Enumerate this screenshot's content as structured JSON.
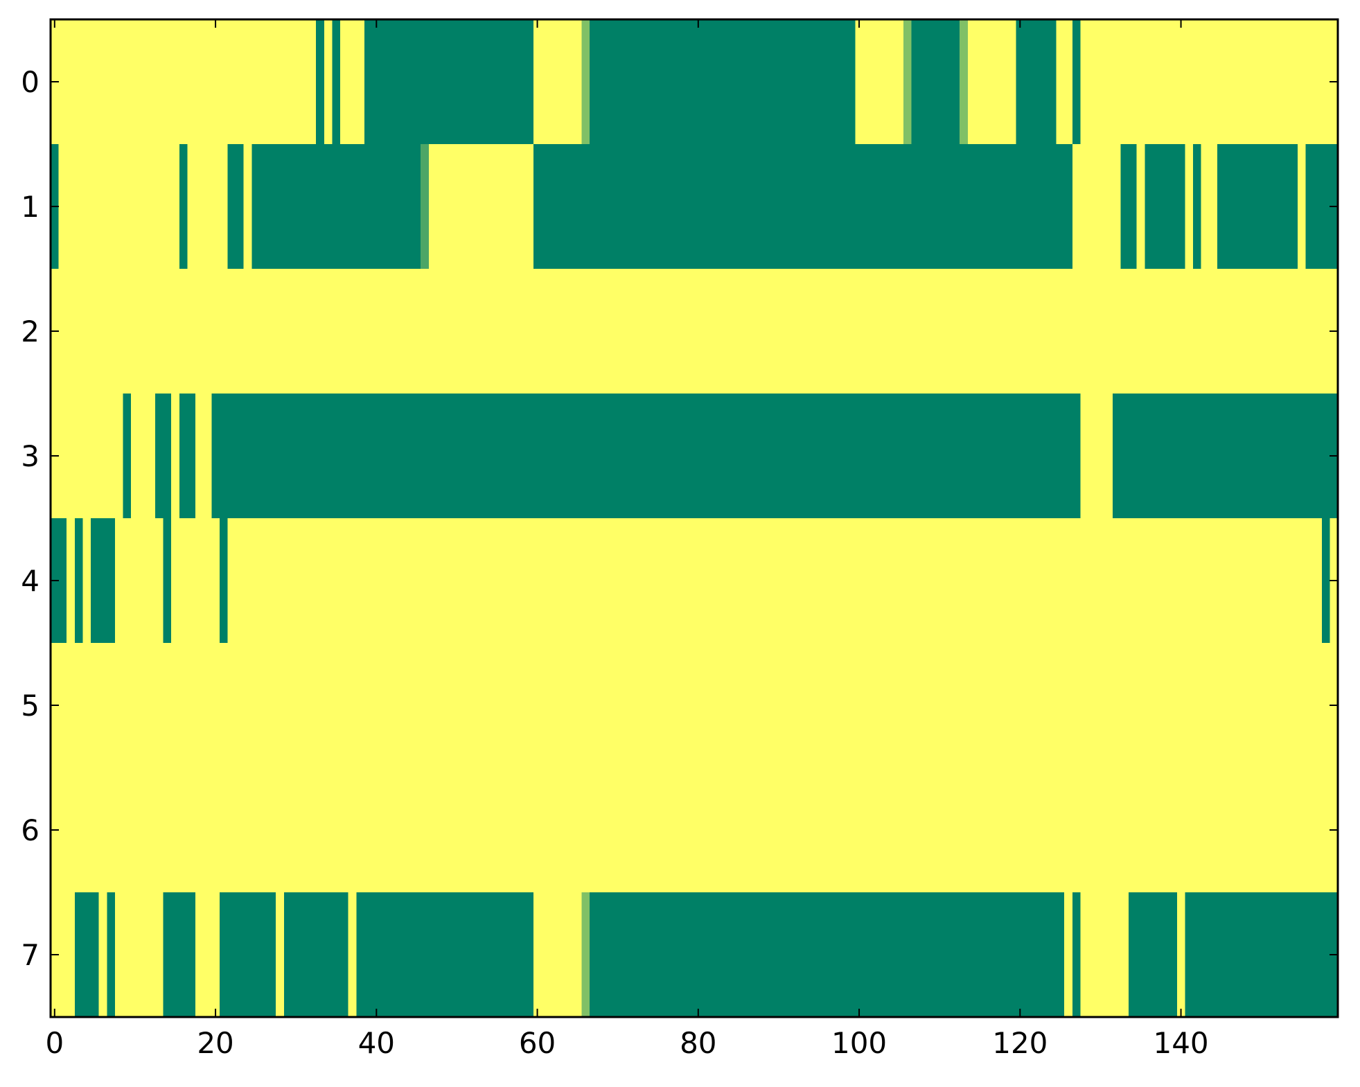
{
  "chart_data": {
    "type": "heatmap",
    "title": "",
    "xlabel": "",
    "ylabel": "",
    "n_cols": 160,
    "n_rows": 8,
    "xlim": [
      -0.5,
      159.5
    ],
    "ylim": [
      7.5,
      -0.5
    ],
    "grid": false,
    "legend": "none",
    "colormap": "summer_r",
    "x_ticks": [
      0,
      20,
      40,
      60,
      80,
      100,
      120,
      140
    ],
    "x_tick_labels": [
      "0",
      "20",
      "40",
      "60",
      "80",
      "100",
      "120",
      "140"
    ],
    "y_ticks": [
      0,
      1,
      2,
      3,
      4,
      5,
      6,
      7
    ],
    "y_tick_labels": [
      "0",
      "1",
      "2",
      "3",
      "4",
      "5",
      "6",
      "7"
    ],
    "colors": {
      "low": "#ffff66",
      "mid": "#8cc566",
      "high": "#008066",
      "axes": "#000000",
      "background": "#ffffff"
    },
    "value_scale": "0 = low (yellow), 1 = high (green); cells not listed are 0",
    "rows": [
      {
        "row": 0,
        "segments": [
          {
            "start": 33,
            "end": 33,
            "value": 1
          },
          {
            "start": 35,
            "end": 35,
            "value": 1
          },
          {
            "start": 39,
            "end": 59,
            "value": 1
          },
          {
            "start": 66,
            "end": 66,
            "value": 0.5
          },
          {
            "start": 67,
            "end": 99,
            "value": 1
          },
          {
            "start": 106,
            "end": 106,
            "value": 0.5
          },
          {
            "start": 107,
            "end": 112,
            "value": 1
          },
          {
            "start": 113,
            "end": 113,
            "value": 0.5
          },
          {
            "start": 120,
            "end": 124,
            "value": 1
          },
          {
            "start": 127,
            "end": 127,
            "value": 1
          }
        ]
      },
      {
        "row": 1,
        "segments": [
          {
            "start": 0,
            "end": 0,
            "value": 1
          },
          {
            "start": 16,
            "end": 16,
            "value": 1
          },
          {
            "start": 22,
            "end": 23,
            "value": 1
          },
          {
            "start": 25,
            "end": 45,
            "value": 1
          },
          {
            "start": 46,
            "end": 46,
            "value": 0.7
          },
          {
            "start": 60,
            "end": 126,
            "value": 1
          },
          {
            "start": 133,
            "end": 134,
            "value": 1
          },
          {
            "start": 136,
            "end": 140,
            "value": 1
          },
          {
            "start": 142,
            "end": 142,
            "value": 1
          },
          {
            "start": 145,
            "end": 154,
            "value": 1
          },
          {
            "start": 156,
            "end": 159,
            "value": 1
          }
        ]
      },
      {
        "row": 2,
        "segments": []
      },
      {
        "row": 3,
        "segments": [
          {
            "start": 9,
            "end": 9,
            "value": 1
          },
          {
            "start": 13,
            "end": 14,
            "value": 1
          },
          {
            "start": 16,
            "end": 17,
            "value": 1
          },
          {
            "start": 20,
            "end": 127,
            "value": 1
          },
          {
            "start": 132,
            "end": 159,
            "value": 1
          }
        ]
      },
      {
        "row": 4,
        "segments": [
          {
            "start": 0,
            "end": 1,
            "value": 1
          },
          {
            "start": 3,
            "end": 3,
            "value": 1
          },
          {
            "start": 5,
            "end": 7,
            "value": 1
          },
          {
            "start": 14,
            "end": 14,
            "value": 1
          },
          {
            "start": 21,
            "end": 21,
            "value": 1
          },
          {
            "start": 158,
            "end": 158,
            "value": 1
          }
        ]
      },
      {
        "row": 5,
        "segments": []
      },
      {
        "row": 6,
        "segments": []
      },
      {
        "row": 7,
        "segments": [
          {
            "start": 3,
            "end": 5,
            "value": 1
          },
          {
            "start": 7,
            "end": 7,
            "value": 1
          },
          {
            "start": 14,
            "end": 17,
            "value": 1
          },
          {
            "start": 21,
            "end": 27,
            "value": 1
          },
          {
            "start": 29,
            "end": 36,
            "value": 1
          },
          {
            "start": 38,
            "end": 59,
            "value": 1
          },
          {
            "start": 66,
            "end": 66,
            "value": 0.5
          },
          {
            "start": 67,
            "end": 125,
            "value": 1
          },
          {
            "start": 127,
            "end": 127,
            "value": 1
          },
          {
            "start": 134,
            "end": 139,
            "value": 1
          },
          {
            "start": 141,
            "end": 159,
            "value": 1
          }
        ]
      }
    ]
  }
}
